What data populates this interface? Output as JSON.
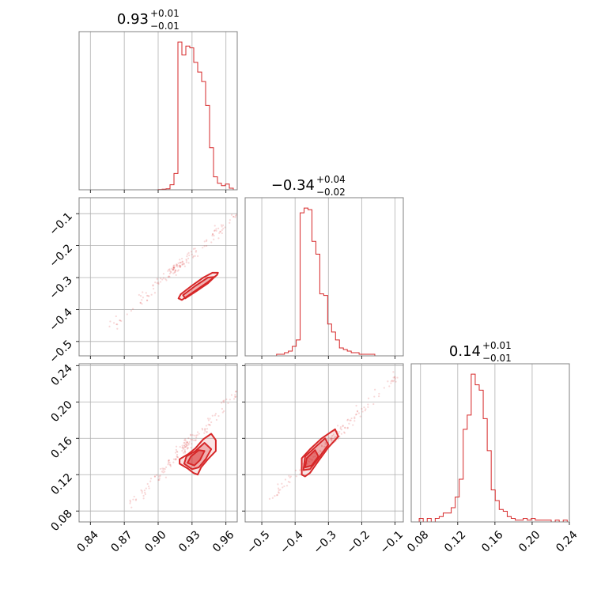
{
  "figure": {
    "type": "corner-plot",
    "color": "#d62728"
  },
  "chart_data": [
    {
      "type": "histogram",
      "panel": "hist-0",
      "title": {
        "main": "0.93",
        "sup": "+0.01",
        "sub": "−0.01"
      },
      "xlim": [
        0.83,
        0.97
      ],
      "bin_edges_start": 0.83,
      "bin_width": 0.0035,
      "counts": [
        0,
        0,
        0,
        0,
        0,
        0,
        0,
        0,
        0,
        0,
        0,
        0,
        0,
        0,
        0,
        0,
        0,
        0,
        0,
        0,
        0.2,
        0.4,
        0.6,
        3.2,
        10.3,
        93.3,
        85.1,
        90.7,
        89.6,
        80.4,
        74.3,
        68.3,
        53.2,
        26.6,
        8.2,
        4.1,
        2.6,
        3.6,
        1.0,
        0,
        0
      ]
    },
    {
      "type": "histogram",
      "panel": "hist-1",
      "title": {
        "main": "−0.34",
        "sup": "+0.04",
        "sub": "−0.02"
      },
      "xlim": [
        -0.55,
        -0.075
      ],
      "bin_edges_start": -0.55,
      "bin_width": 0.0118,
      "counts": [
        0,
        0,
        0,
        0,
        0,
        0,
        0,
        0,
        1,
        1,
        2,
        3,
        6,
        10,
        90,
        93,
        92,
        72,
        64,
        39,
        38,
        20,
        15,
        10,
        5,
        4,
        3,
        2,
        2,
        1,
        1,
        1,
        1,
        0,
        0,
        0,
        0,
        0,
        0,
        0
      ]
    },
    {
      "type": "histogram",
      "panel": "hist-2",
      "title": {
        "main": "0.14",
        "sup": "+0.01",
        "sub": "−0.01"
      },
      "xlim": [
        0.07,
        0.24
      ],
      "bin_edges_start": 0.07,
      "bin_width": 0.0043,
      "counts": [
        0,
        0,
        2,
        0,
        2,
        0,
        2,
        3,
        5,
        5,
        8,
        14,
        24,
        52,
        60,
        83,
        77,
        74,
        58,
        40,
        18,
        12,
        7,
        6,
        3,
        2,
        1,
        1,
        2,
        1,
        2,
        1,
        1,
        1,
        1,
        0,
        1,
        0,
        1,
        0
      ]
    },
    {
      "type": "scatter",
      "panel": "scatter-1-0",
      "xlim": [
        0.83,
        0.97
      ],
      "ylim": [
        -0.545,
        -0.05
      ],
      "trend": {
        "x_from": 0.85,
        "x_to": 0.97,
        "y_from": -0.48,
        "y_to": -0.1
      },
      "contours": [
        [
          [
            0.921,
            -0.37
          ],
          [
            0.926,
            -0.358
          ],
          [
            0.935,
            -0.336
          ],
          [
            0.944,
            -0.314
          ],
          [
            0.952,
            -0.292
          ],
          [
            0.953,
            -0.285
          ],
          [
            0.948,
            -0.285
          ],
          [
            0.94,
            -0.3
          ],
          [
            0.93,
            -0.325
          ],
          [
            0.92,
            -0.352
          ],
          [
            0.918,
            -0.365
          ]
        ],
        [
          [
            0.924,
            -0.365
          ],
          [
            0.934,
            -0.342
          ],
          [
            0.944,
            -0.318
          ],
          [
            0.95,
            -0.298
          ],
          [
            0.944,
            -0.3
          ],
          [
            0.933,
            -0.326
          ],
          [
            0.922,
            -0.355
          ]
        ]
      ]
    },
    {
      "type": "scatter",
      "panel": "scatter-2-0",
      "xlim": [
        0.83,
        0.97
      ],
      "ylim": [
        0.068,
        0.242
      ],
      "trend": {
        "x_from": 0.87,
        "x_to": 0.97,
        "y_from": 0.08,
        "y_to": 0.21
      },
      "contours": [
        [
          [
            0.919,
            0.132
          ],
          [
            0.926,
            0.127
          ],
          [
            0.931,
            0.122
          ],
          [
            0.935,
            0.12
          ],
          [
            0.938,
            0.128
          ],
          [
            0.944,
            0.137
          ],
          [
            0.951,
            0.146
          ],
          [
            0.951,
            0.158
          ],
          [
            0.947,
            0.165
          ],
          [
            0.94,
            0.159
          ],
          [
            0.933,
            0.149
          ],
          [
            0.927,
            0.143
          ],
          [
            0.919,
            0.137
          ]
        ],
        [
          [
            0.923,
            0.132
          ],
          [
            0.93,
            0.126
          ],
          [
            0.936,
            0.128
          ],
          [
            0.942,
            0.137
          ],
          [
            0.947,
            0.148
          ],
          [
            0.941,
            0.155
          ],
          [
            0.933,
            0.146
          ],
          [
            0.925,
            0.14
          ]
        ],
        [
          [
            0.926,
            0.133
          ],
          [
            0.932,
            0.13
          ],
          [
            0.937,
            0.136
          ],
          [
            0.941,
            0.146
          ],
          [
            0.936,
            0.147
          ],
          [
            0.929,
            0.14
          ]
        ]
      ]
    },
    {
      "type": "scatter",
      "panel": "scatter-2-1",
      "xlim": [
        -0.55,
        -0.075
      ],
      "ylim": [
        0.068,
        0.242
      ],
      "trend": {
        "x_from": -0.5,
        "x_to": -0.1,
        "y_from": 0.085,
        "y_to": 0.225
      },
      "contours": [
        [
          [
            -0.38,
            0.12
          ],
          [
            -0.37,
            0.118
          ],
          [
            -0.355,
            0.122
          ],
          [
            -0.33,
            0.135
          ],
          [
            -0.3,
            0.15
          ],
          [
            -0.27,
            0.162
          ],
          [
            -0.28,
            0.17
          ],
          [
            -0.32,
            0.16
          ],
          [
            -0.355,
            0.148
          ],
          [
            -0.38,
            0.138
          ]
        ],
        [
          [
            -0.375,
            0.125
          ],
          [
            -0.355,
            0.126
          ],
          [
            -0.33,
            0.138
          ],
          [
            -0.3,
            0.153
          ],
          [
            -0.31,
            0.16
          ],
          [
            -0.34,
            0.15
          ],
          [
            -0.37,
            0.14
          ]
        ],
        [
          [
            -0.37,
            0.128
          ],
          [
            -0.35,
            0.13
          ],
          [
            -0.33,
            0.14
          ],
          [
            -0.34,
            0.147
          ],
          [
            -0.365,
            0.138
          ]
        ]
      ]
    }
  ],
  "axes": {
    "x_param0_ticks": [
      {
        "v": 0.84,
        "label": "0.84"
      },
      {
        "v": 0.87,
        "label": "0.87"
      },
      {
        "v": 0.9,
        "label": "0.90"
      },
      {
        "v": 0.93,
        "label": "0.93"
      },
      {
        "v": 0.96,
        "label": "0.96"
      }
    ],
    "x_param1_ticks": [
      {
        "v": -0.5,
        "label": "−0.5"
      },
      {
        "v": -0.4,
        "label": "−0.4"
      },
      {
        "v": -0.3,
        "label": "−0.3"
      },
      {
        "v": -0.2,
        "label": "−0.2"
      },
      {
        "v": -0.1,
        "label": "−0.1"
      }
    ],
    "x_param2_ticks": [
      {
        "v": 0.08,
        "label": "0.08"
      },
      {
        "v": 0.12,
        "label": "0.12"
      },
      {
        "v": 0.16,
        "label": "0.16"
      },
      {
        "v": 0.2,
        "label": "0.20"
      },
      {
        "v": 0.24,
        "label": "0.24"
      }
    ],
    "y_param1_ticks": [
      {
        "v": -0.1,
        "label": "−0.1"
      },
      {
        "v": -0.2,
        "label": "−0.2"
      },
      {
        "v": -0.3,
        "label": "−0.3"
      },
      {
        "v": -0.4,
        "label": "−0.4"
      },
      {
        "v": -0.5,
        "label": "−0.5"
      }
    ],
    "y_param2_ticks": [
      {
        "v": 0.24,
        "label": "0.24"
      },
      {
        "v": 0.2,
        "label": "0.20"
      },
      {
        "v": 0.16,
        "label": "0.16"
      },
      {
        "v": 0.12,
        "label": "0.12"
      },
      {
        "v": 0.08,
        "label": "0.08"
      }
    ]
  }
}
